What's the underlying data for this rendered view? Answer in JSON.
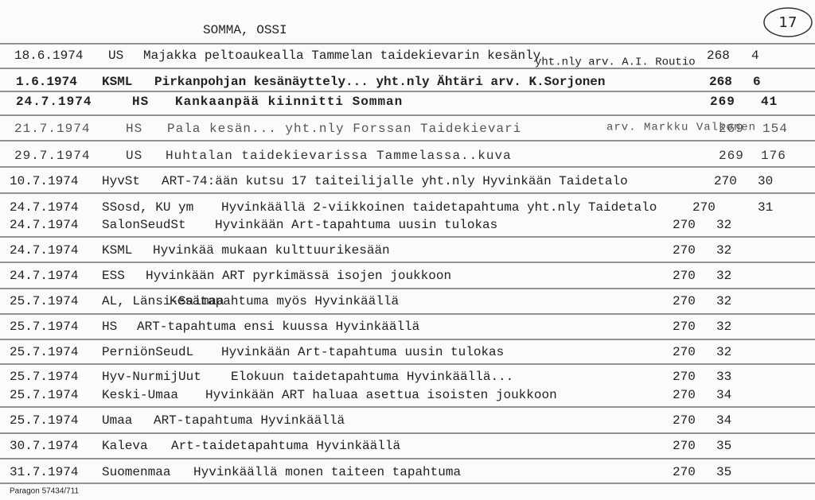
{
  "header": {
    "name": "SOMMA, OSSI",
    "card_number": "17"
  },
  "rows": [
    {
      "date": "18.6.1974",
      "source": "US",
      "text": "Majakka peltoaukealla Tammelan taidekievarin kesänly",
      "note": "yht.nly arv. A.I. Routio",
      "volume": 268,
      "page": 4
    },
    {
      "date": "1.6.1974",
      "source": "KSML",
      "text": "Pirkanpohjan kesänäyttely... yht.nly Ähtäri arv. K.Sorjonen",
      "volume": 268,
      "page": 6
    },
    {
      "date": "24.7.1974",
      "source": "HS",
      "text": "Kankaanpää kiinnitti Somman",
      "volume": 269,
      "page": 41
    },
    {
      "date": "21.7.1974",
      "source": "HS",
      "text": "Pala kesän... yht.nly Forssan Taidekievari",
      "note": "arv. Markku Valkonen",
      "volume": 269,
      "page": 154
    },
    {
      "date": "29.7.1974",
      "source": "US",
      "text": "Huhtalan taidekievarissa Tammelassa..kuva",
      "volume": 269,
      "page": 176
    },
    {
      "date": "10.7.1974",
      "source": "HyvSt",
      "text": "ART-74:ään kutsu 17 taiteilijalle yht.nly Hyvinkään Taidetalo",
      "volume": 270,
      "page": 30
    },
    {
      "date": "24.7.1974",
      "source": "SSosd, KU ym",
      "text": "Hyvinkäällä 2-viikkoinen taidetapahtuma yht.nly Taidetalo",
      "volume": 270,
      "page": 31
    },
    {
      "date": "24.7.1974",
      "source": "SalonSeudSt",
      "text": "Hyvinkään Art-tapahtuma uusin tulokas",
      "volume": 270,
      "page": 32
    },
    {
      "date": "24.7.1974",
      "source": "KSML",
      "text": "Hyvinkää mukaan kulttuurikesään",
      "volume": 270,
      "page": 32
    },
    {
      "date": "24.7.1974",
      "source": "ESS",
      "text": "Hyvinkään ART pyrkimässä isojen joukkoon",
      "volume": 270,
      "page": 32
    },
    {
      "date": "25.7.1974",
      "source": "AL, Länsi-Saimaa",
      "text": "Kesätapahtuma myös Hyvinkäällä",
      "volume": 270,
      "page": 32
    },
    {
      "date": "25.7.1974",
      "source": "HS",
      "text": "ART-tapahtuma ensi kuussa Hyvinkäällä",
      "volume": 270,
      "page": 32
    },
    {
      "date": "25.7.1974",
      "source": "PerniönSeudL",
      "text": "Hyvinkään Art-tapahtuma uusin tulokas",
      "volume": 270,
      "page": 32
    },
    {
      "date": "25.7.1974",
      "source": "Hyv-NurmijUut",
      "text": "Elokuun taidetapahtuma Hyvinkäällä...",
      "volume": 270,
      "page": 33
    },
    {
      "date": "25.7.1974",
      "source": "Keski-Umaa",
      "text": "Hyvinkään ART haluaa asettua isoisten joukkoon",
      "volume": 270,
      "page": 34
    },
    {
      "date": "25.7.1974",
      "source": "Umaa",
      "text": "ART-tapahtuma Hyvinkäällä",
      "volume": 270,
      "page": 34
    },
    {
      "date": "30.7.1974",
      "source": "Kaleva",
      "text": "Art-taidetapahtuma Hyvinkäällä",
      "volume": 270,
      "page": 35
    },
    {
      "date": "31.7.1974",
      "source": "Suomenmaa",
      "text": "Hyvinkäällä monen taiteen tapahtuma",
      "volume": 270,
      "page": 35
    }
  ],
  "footer": "Paragon 57434/711"
}
